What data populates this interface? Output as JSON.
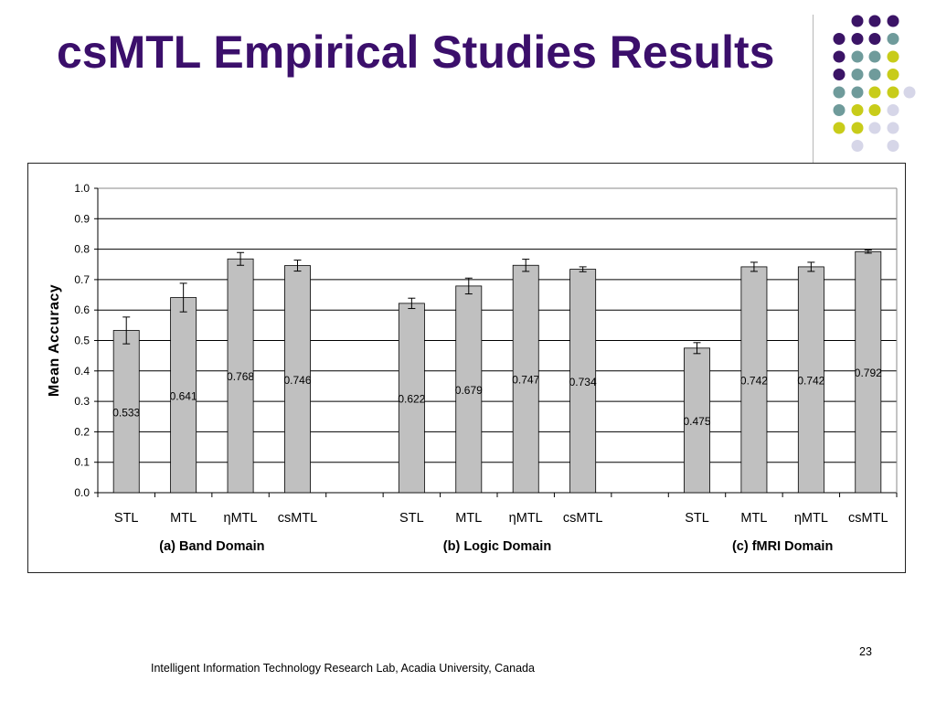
{
  "slide": {
    "title": "csMTL Empirical Studies Results",
    "footer": "Intelligent  Information Technology Research Lab,   Acadia University, Canada",
    "page_number": "23"
  },
  "theme": {
    "title_color": "#3b0f6b",
    "dot_colors": [
      "#3b1466",
      "#6f9b9b",
      "#c8cc1a",
      "#d6d6e8"
    ]
  },
  "chart_data": {
    "type": "bar",
    "title": "",
    "xlabel": "",
    "ylabel": "Mean Accuracy",
    "ylim": [
      0,
      1.0
    ],
    "yticks": [
      "0.0",
      "0.1",
      "0.2",
      "0.3",
      "0.4",
      "0.5",
      "0.6",
      "0.7",
      "0.8",
      "0.9",
      "1.0"
    ],
    "grid": true,
    "bar_color": "#c0c0c0",
    "groups": [
      {
        "name": "(a) Band Domain",
        "categories": [
          "STL",
          "MTL",
          "ηMTL",
          "csMTL"
        ],
        "values": [
          0.533,
          0.641,
          0.768,
          0.746
        ],
        "labels": [
          "0.533",
          "0.641",
          "0.768",
          "0.746"
        ],
        "errors": [
          0.044,
          0.047,
          0.021,
          0.018
        ]
      },
      {
        "name": "(b) Logic Domain",
        "categories": [
          "STL",
          "MTL",
          "ηMTL",
          "csMTL"
        ],
        "values": [
          0.622,
          0.679,
          0.747,
          0.734
        ],
        "labels": [
          "0.622",
          "0.679",
          "0.747",
          "0.734"
        ],
        "errors": [
          0.017,
          0.026,
          0.02,
          0.008
        ]
      },
      {
        "name": "(c) fMRI Domain",
        "categories": [
          "STL",
          "MTL",
          "ηMTL",
          "csMTL"
        ],
        "values": [
          0.475,
          0.742,
          0.742,
          0.792
        ],
        "labels": [
          "0.475",
          "0.742",
          "0.742",
          "0.792"
        ],
        "errors": [
          0.018,
          0.015,
          0.015,
          0.005
        ]
      }
    ]
  }
}
